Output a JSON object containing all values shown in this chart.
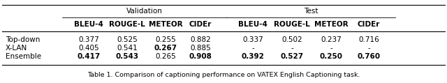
{
  "title": "Table 1. Comparison of captioning performance on VATEX English Captioning task.",
  "col_headers": [
    "BLEU-4",
    "ROUGE-L",
    "METEOR",
    "CIDEr",
    "BLEU-4",
    "ROUGE-L",
    "METEOR",
    "CIDEr"
  ],
  "rows": [
    {
      "name": "Top-down",
      "vals": [
        "0.377",
        "0.525",
        "0.255",
        "0.882",
        "0.337",
        "0.502",
        "0.237",
        "0.716"
      ],
      "bold": [
        false,
        false,
        false,
        false,
        false,
        false,
        false,
        false
      ]
    },
    {
      "name": "X-LAN",
      "vals": [
        "0.405",
        "0.541",
        "0.267",
        "0.885",
        "-",
        "-",
        "-",
        "-"
      ],
      "bold": [
        false,
        false,
        true,
        false,
        false,
        false,
        false,
        false
      ]
    },
    {
      "name": "Ensemble",
      "vals": [
        "0.417",
        "0.543",
        "0.265",
        "0.908",
        "0.392",
        "0.527",
        "0.250",
        "0.760"
      ],
      "bold": [
        true,
        true,
        false,
        true,
        true,
        true,
        true,
        true
      ]
    }
  ],
  "bg_color": "#ffffff",
  "text_color": "#000000",
  "font_size": 7.5,
  "header_font_size": 7.5,
  "title_font_size": 6.8,
  "fig_width": 6.4,
  "fig_height": 1.19,
  "dpi": 100
}
